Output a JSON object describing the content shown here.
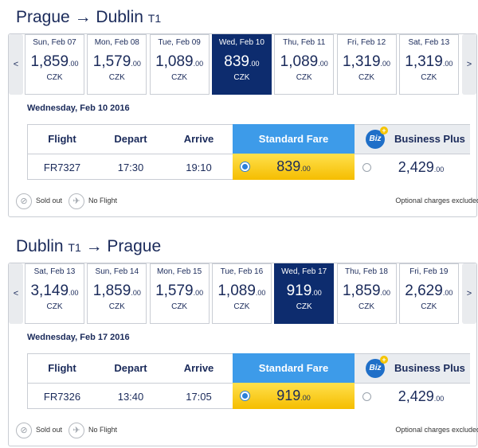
{
  "outbound": {
    "from": "Prague",
    "arrow": "→",
    "to": "Dublin",
    "terminal": "T1",
    "prev_arrow": "<",
    "next_arrow": ">",
    "days": [
      {
        "label": "Sun, Feb 07",
        "price": "1,859",
        "dec": ".00",
        "currency": "CZK"
      },
      {
        "label": "Mon, Feb 08",
        "price": "1,579",
        "dec": ".00",
        "currency": "CZK"
      },
      {
        "label": "Tue, Feb 09",
        "price": "1,089",
        "dec": ".00",
        "currency": "CZK"
      },
      {
        "label": "Wed, Feb 10",
        "price": "839",
        "dec": ".00",
        "currency": "CZK"
      },
      {
        "label": "Thu, Feb 11",
        "price": "1,089",
        "dec": ".00",
        "currency": "CZK"
      },
      {
        "label": "Fri, Feb 12",
        "price": "1,319",
        "dec": ".00",
        "currency": "CZK"
      },
      {
        "label": "Sat, Feb 13",
        "price": "1,319",
        "dec": ".00",
        "currency": "CZK"
      }
    ],
    "selected_index": 3,
    "selected_date": "Wednesday, Feb 10 2016",
    "flight": "FR7327",
    "depart": "17:30",
    "arrive": "19:10",
    "standard_price": "839",
    "standard_dec": ".00",
    "business_price": "2,429",
    "business_dec": ".00"
  },
  "return": {
    "from": "Dublin",
    "terminal": "T1",
    "arrow": "→",
    "to": "Prague",
    "prev_arrow": "<",
    "next_arrow": ">",
    "days": [
      {
        "label": "Sat, Feb 13",
        "price": "3,149",
        "dec": ".00",
        "currency": "CZK"
      },
      {
        "label": "Sun, Feb 14",
        "price": "1,859",
        "dec": ".00",
        "currency": "CZK"
      },
      {
        "label": "Mon, Feb 15",
        "price": "1,579",
        "dec": ".00",
        "currency": "CZK"
      },
      {
        "label": "Tue, Feb 16",
        "price": "1,089",
        "dec": ".00",
        "currency": "CZK"
      },
      {
        "label": "Wed, Feb 17",
        "price": "919",
        "dec": ".00",
        "currency": "CZK"
      },
      {
        "label": "Thu, Feb 18",
        "price": "1,859",
        "dec": ".00",
        "currency": "CZK"
      },
      {
        "label": "Fri, Feb 19",
        "price": "2,629",
        "dec": ".00",
        "currency": "CZK"
      }
    ],
    "selected_index": 4,
    "selected_date": "Wednesday, Feb 17 2016",
    "flight": "FR7326",
    "depart": "13:40",
    "arrive": "17:05",
    "standard_price": "919",
    "standard_dec": ".00",
    "business_price": "2,429",
    "business_dec": ".00"
  },
  "table_headers": {
    "flight": "Flight",
    "depart": "Depart",
    "arrive": "Arrive",
    "standard": "Standard Fare",
    "business": "Business Plus",
    "biz_icon": "Biz",
    "biz_plus": "+"
  },
  "legend": {
    "sold_out": "Sold out",
    "no_flight": "No Flight",
    "optional": "Optional charges excluded",
    "sold_out_icon": "sold-out-icon",
    "no_flight_icon": "no-flight-icon"
  },
  "colors": {
    "selected_day": "#0d2c6e",
    "standard_header": "#3d9be9",
    "standard_fare": "#f5bd00",
    "text": "#1a2a5a"
  }
}
